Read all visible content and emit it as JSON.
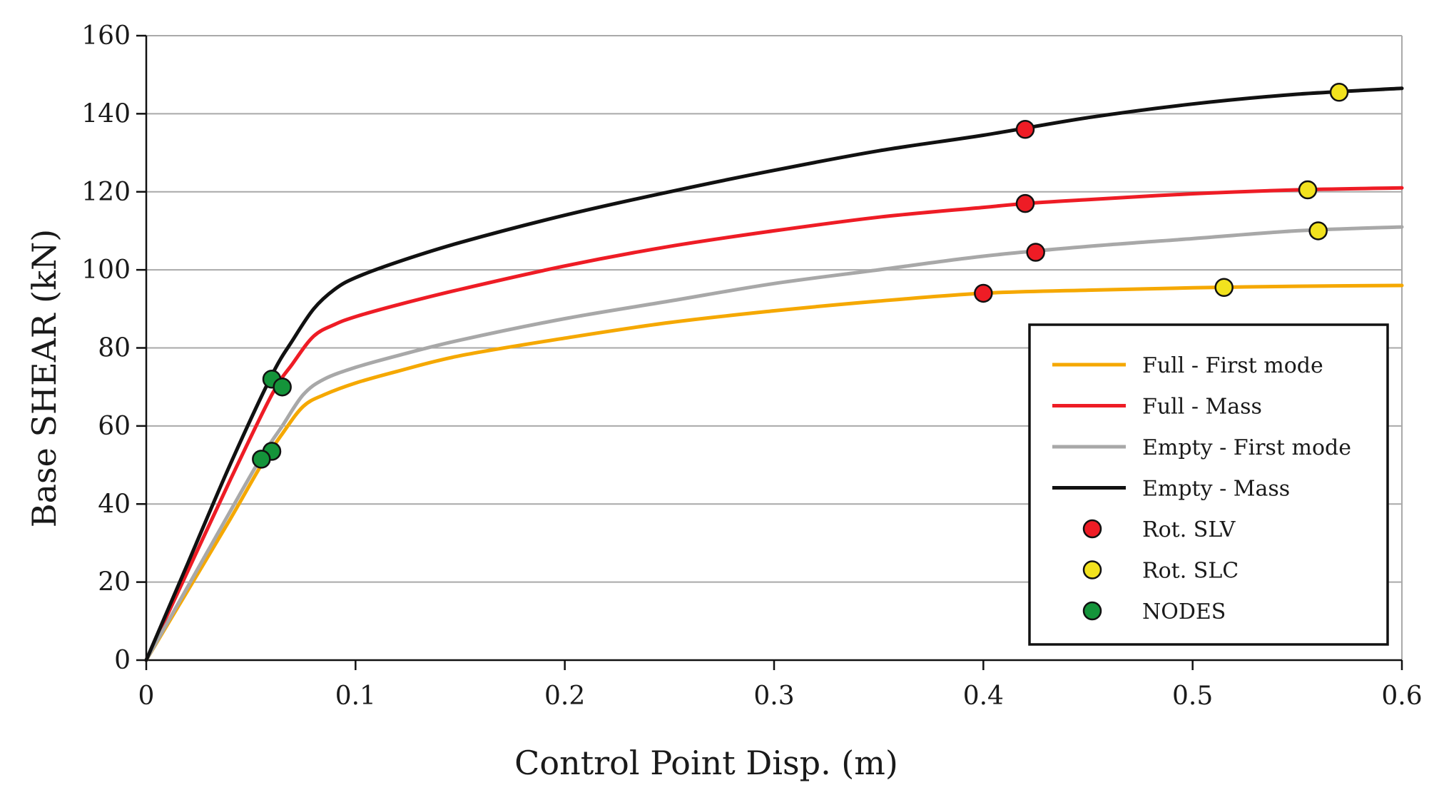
{
  "chart_data": {
    "type": "line",
    "title": "",
    "xlabel": "Control Point Disp. (m)",
    "ylabel": "Base SHEAR (kN)",
    "xlim": [
      0,
      0.6
    ],
    "ylim": [
      0,
      160
    ],
    "grid": "horizontal",
    "x_ticks": [
      0,
      0.1,
      0.2,
      0.3,
      0.4,
      0.5,
      0.6
    ],
    "x_tick_labels": [
      "0",
      "0.1",
      "0.2",
      "0.3",
      "0.4",
      "0.5",
      "0.6"
    ],
    "y_ticks": [
      0,
      20,
      40,
      60,
      80,
      100,
      120,
      140,
      160
    ],
    "y_tick_labels": [
      "0",
      "20",
      "40",
      "60",
      "80",
      "100",
      "120",
      "140",
      "160"
    ],
    "legend_position": "bottom-right",
    "series": [
      {
        "name": "Full - First mode",
        "color": "#F5A800",
        "x": [
          0,
          0.02,
          0.04,
          0.055,
          0.065,
          0.075,
          0.085,
          0.1,
          0.12,
          0.15,
          0.2,
          0.25,
          0.3,
          0.35,
          0.4,
          0.45,
          0.5,
          0.55,
          0.6
        ],
        "y": [
          0,
          18,
          36,
          50,
          58,
          65,
          68,
          71,
          74,
          78,
          82.5,
          86.5,
          89.5,
          92,
          94,
          94.8,
          95.4,
          95.8,
          96
        ]
      },
      {
        "name": "Full - Mass",
        "color": "#EE1C25",
        "x": [
          0,
          0.02,
          0.04,
          0.06,
          0.07,
          0.08,
          0.09,
          0.1,
          0.12,
          0.15,
          0.2,
          0.25,
          0.3,
          0.35,
          0.4,
          0.42,
          0.45,
          0.5,
          0.55,
          0.6
        ],
        "y": [
          0,
          23,
          46,
          68,
          76,
          83,
          86,
          88,
          91,
          95,
          101,
          106,
          110,
          113.5,
          116,
          117,
          118,
          119.5,
          120.5,
          121
        ]
      },
      {
        "name": "Empty - First mode",
        "color": "#A8A8A8",
        "x": [
          0,
          0.02,
          0.04,
          0.055,
          0.065,
          0.075,
          0.085,
          0.1,
          0.12,
          0.15,
          0.2,
          0.25,
          0.3,
          0.35,
          0.4,
          0.45,
          0.5,
          0.55,
          0.6
        ],
        "y": [
          0,
          19,
          38,
          52,
          60,
          68,
          72,
          75,
          78,
          82,
          87.5,
          92,
          96.5,
          100,
          103.5,
          106,
          108,
          110,
          111
        ]
      },
      {
        "name": "Empty - Mass",
        "color": "#111111",
        "x": [
          0,
          0.02,
          0.04,
          0.06,
          0.07,
          0.08,
          0.09,
          0.1,
          0.12,
          0.15,
          0.2,
          0.25,
          0.3,
          0.35,
          0.4,
          0.45,
          0.5,
          0.55,
          0.6
        ],
        "y": [
          0,
          25,
          50,
          73,
          82,
          90,
          95,
          98,
          102,
          107,
          114,
          120,
          125.5,
          130.5,
          134.5,
          139,
          142.5,
          145,
          146.5
        ]
      }
    ],
    "markers": [
      {
        "name": "Rot. SLV",
        "color": "#EE1C25",
        "points": [
          [
            0.42,
            136
          ],
          [
            0.42,
            117
          ],
          [
            0.425,
            104.5
          ],
          [
            0.4,
            94
          ]
        ]
      },
      {
        "name": "Rot. SLC",
        "color": "#F2E21E",
        "points": [
          [
            0.57,
            145.5
          ],
          [
            0.555,
            120.5
          ],
          [
            0.56,
            110
          ],
          [
            0.515,
            95.5
          ]
        ]
      },
      {
        "name": "NODES",
        "color": "#14943A",
        "points": [
          [
            0.06,
            72
          ],
          [
            0.065,
            70
          ],
          [
            0.06,
            53.5
          ],
          [
            0.055,
            51.5
          ]
        ]
      }
    ]
  }
}
